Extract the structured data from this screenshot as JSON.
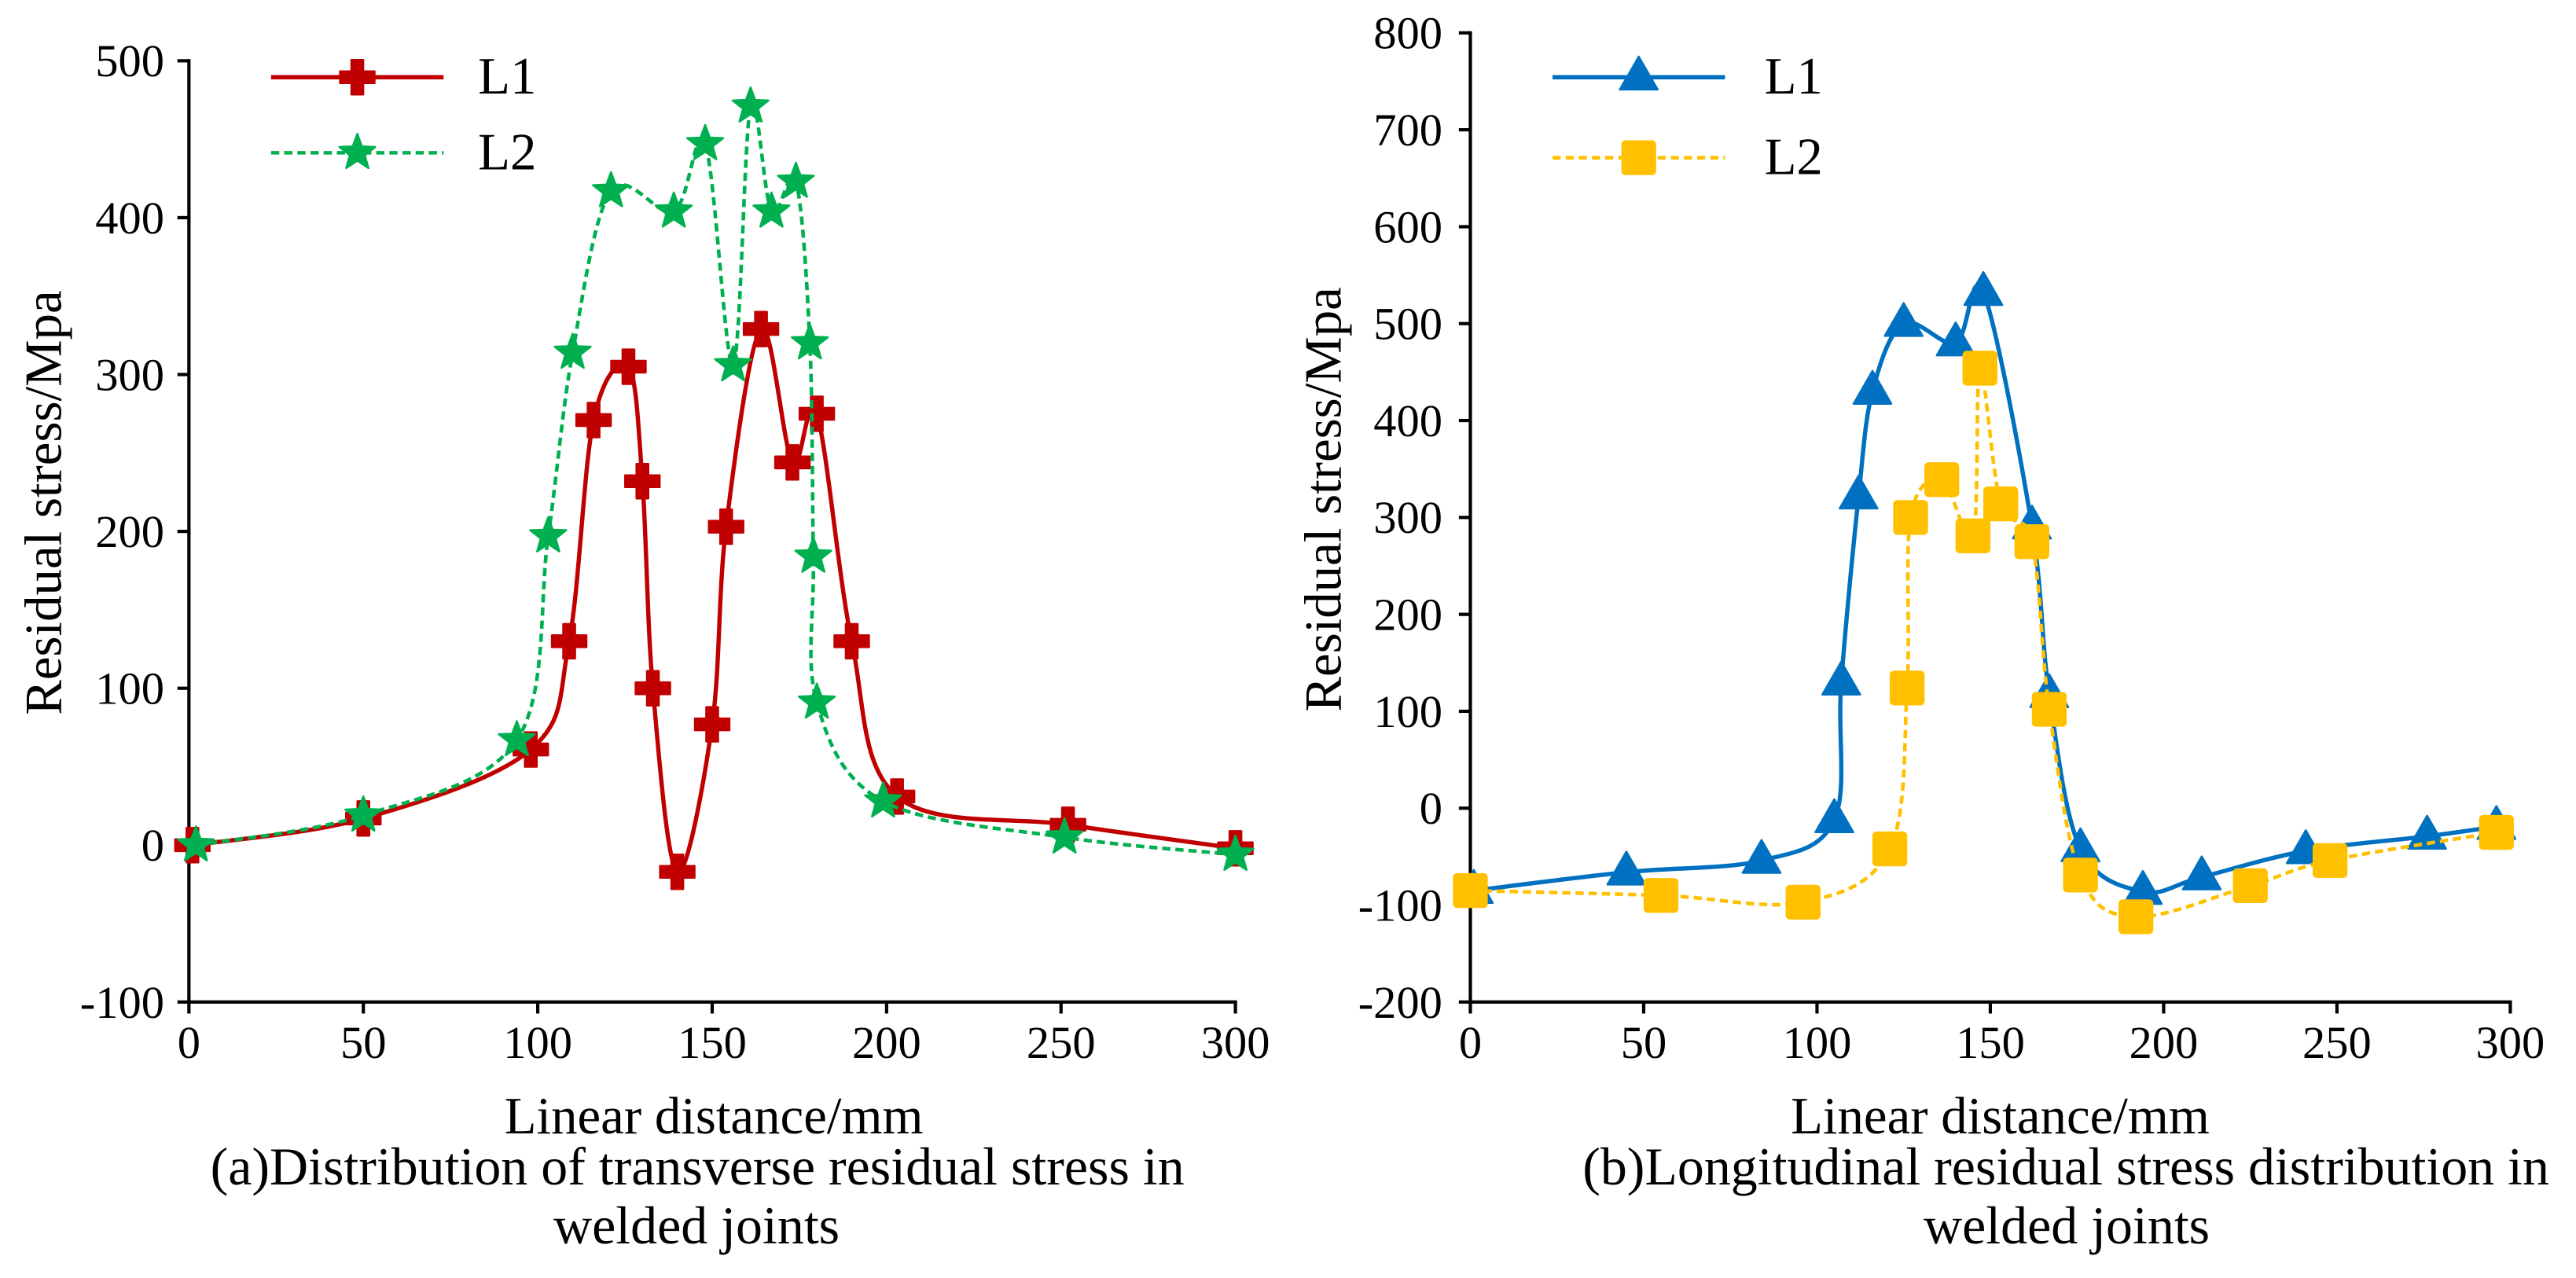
{
  "chart_data": [
    {
      "type": "line",
      "title": "",
      "caption": [
        "(a)Distribution of transverse residual stress in",
        "welded joints"
      ],
      "xlabel": "Linear distance/mm",
      "ylabel": "Residual stress/Mpa",
      "xlim": [
        0,
        300
      ],
      "ylim": [
        -100,
        500
      ],
      "xticks": [
        0,
        50,
        100,
        150,
        200,
        250,
        300
      ],
      "yticks": [
        -100,
        0,
        100,
        200,
        300,
        400,
        500
      ],
      "grid": false,
      "legend": "top-left",
      "series": [
        {
          "name": "L1",
          "color": "#C00000",
          "marker_icon": "plus",
          "dashed": false,
          "x": [
            1,
            50,
            98,
            109,
            116,
            126,
            130,
            133,
            140,
            150,
            154,
            164,
            173,
            180,
            190,
            203,
            252,
            300
          ],
          "y": [
            0,
            17,
            61,
            130,
            271,
            305,
            232,
            100,
            -17,
            77,
            203,
            329,
            244,
            275,
            130,
            31,
            13,
            -2
          ]
        },
        {
          "name": "L2",
          "color": "#00B050",
          "marker_icon": "star",
          "dashed": true,
          "x": [
            2,
            50,
            94,
            103,
            110,
            121,
            139,
            148,
            156,
            161,
            167,
            174,
            178,
            179,
            180,
            199,
            251,
            300
          ],
          "y": [
            0,
            19,
            67,
            197,
            314,
            417,
            404,
            447,
            306,
            471,
            404,
            423,
            320,
            184,
            91,
            28,
            5,
            -6
          ]
        }
      ]
    },
    {
      "type": "line",
      "title": "",
      "caption": [
        "(b)Longitudinal residual stress distribution in",
        "welded joints"
      ],
      "xlabel": "Linear distance/mm",
      "ylabel": "Residual stress/Mpa",
      "xlim": [
        0,
        300
      ],
      "ylim": [
        -200,
        800
      ],
      "xticks": [
        0,
        50,
        100,
        150,
        200,
        250,
        300
      ],
      "yticks": [
        -200,
        -100,
        0,
        100,
        200,
        300,
        400,
        500,
        600,
        700,
        800
      ],
      "grid": false,
      "legend": "top-left",
      "series": [
        {
          "name": "L1",
          "color": "#0070C0",
          "marker_icon": "triangle",
          "dashed": false,
          "x": [
            1,
            45,
            84,
            105,
            107,
            112,
            116,
            125,
            140,
            148,
            162,
            167,
            176,
            194,
            211,
            241,
            276,
            296
          ],
          "y": [
            -85,
            -66,
            -54,
            -12,
            130,
            322,
            430,
            500,
            480,
            532,
            291,
            117,
            -42,
            -86,
            -71,
            -44,
            -29,
            -19
          ]
        },
        {
          "name": "L2",
          "color": "#FFC000",
          "marker_icon": "square",
          "dashed": true,
          "x": [
            0,
            55,
            96,
            121,
            126,
            127,
            136,
            145,
            147,
            153,
            162,
            167,
            176,
            192,
            225,
            248,
            296
          ],
          "y": [
            -85,
            -90,
            -97,
            -42,
            124,
            300,
            339,
            281,
            454,
            314,
            275,
            102,
            -69,
            -112,
            -80,
            -54,
            -25
          ]
        }
      ]
    }
  ]
}
